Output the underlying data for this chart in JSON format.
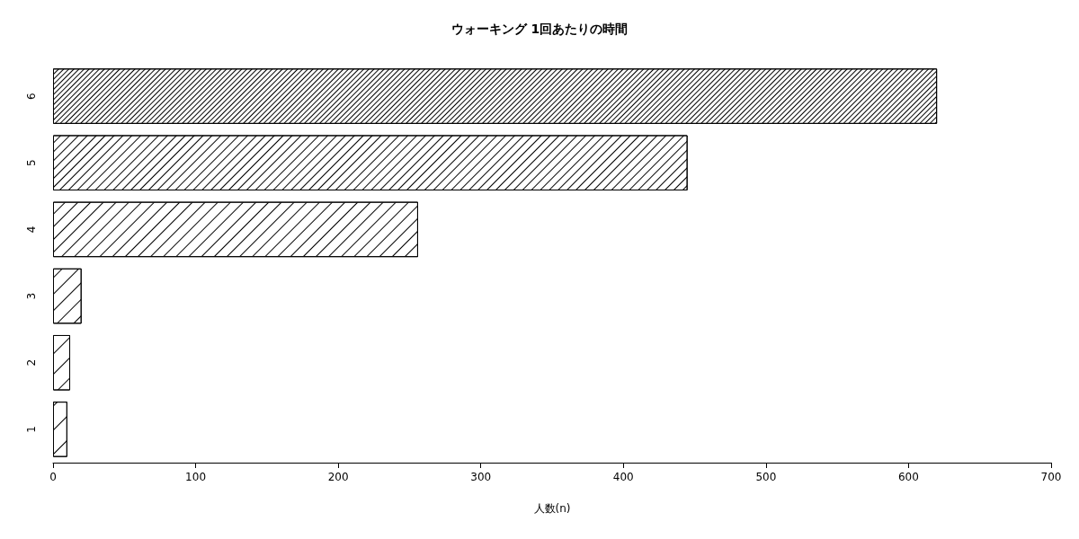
{
  "chart_data": {
    "type": "bar",
    "orientation": "horizontal",
    "title": "ウォーキング 1回あたりの時間",
    "xlabel": "人数(n)",
    "categories": [
      "6",
      "5",
      "4",
      "3",
      "2",
      "1"
    ],
    "values": [
      620,
      445,
      256,
      20,
      12,
      10
    ],
    "color": "#ffffff",
    "xlim": [
      0,
      700
    ],
    "xticks": [
      0,
      100,
      200,
      300,
      400,
      500,
      600,
      700
    ],
    "grid": false
  }
}
